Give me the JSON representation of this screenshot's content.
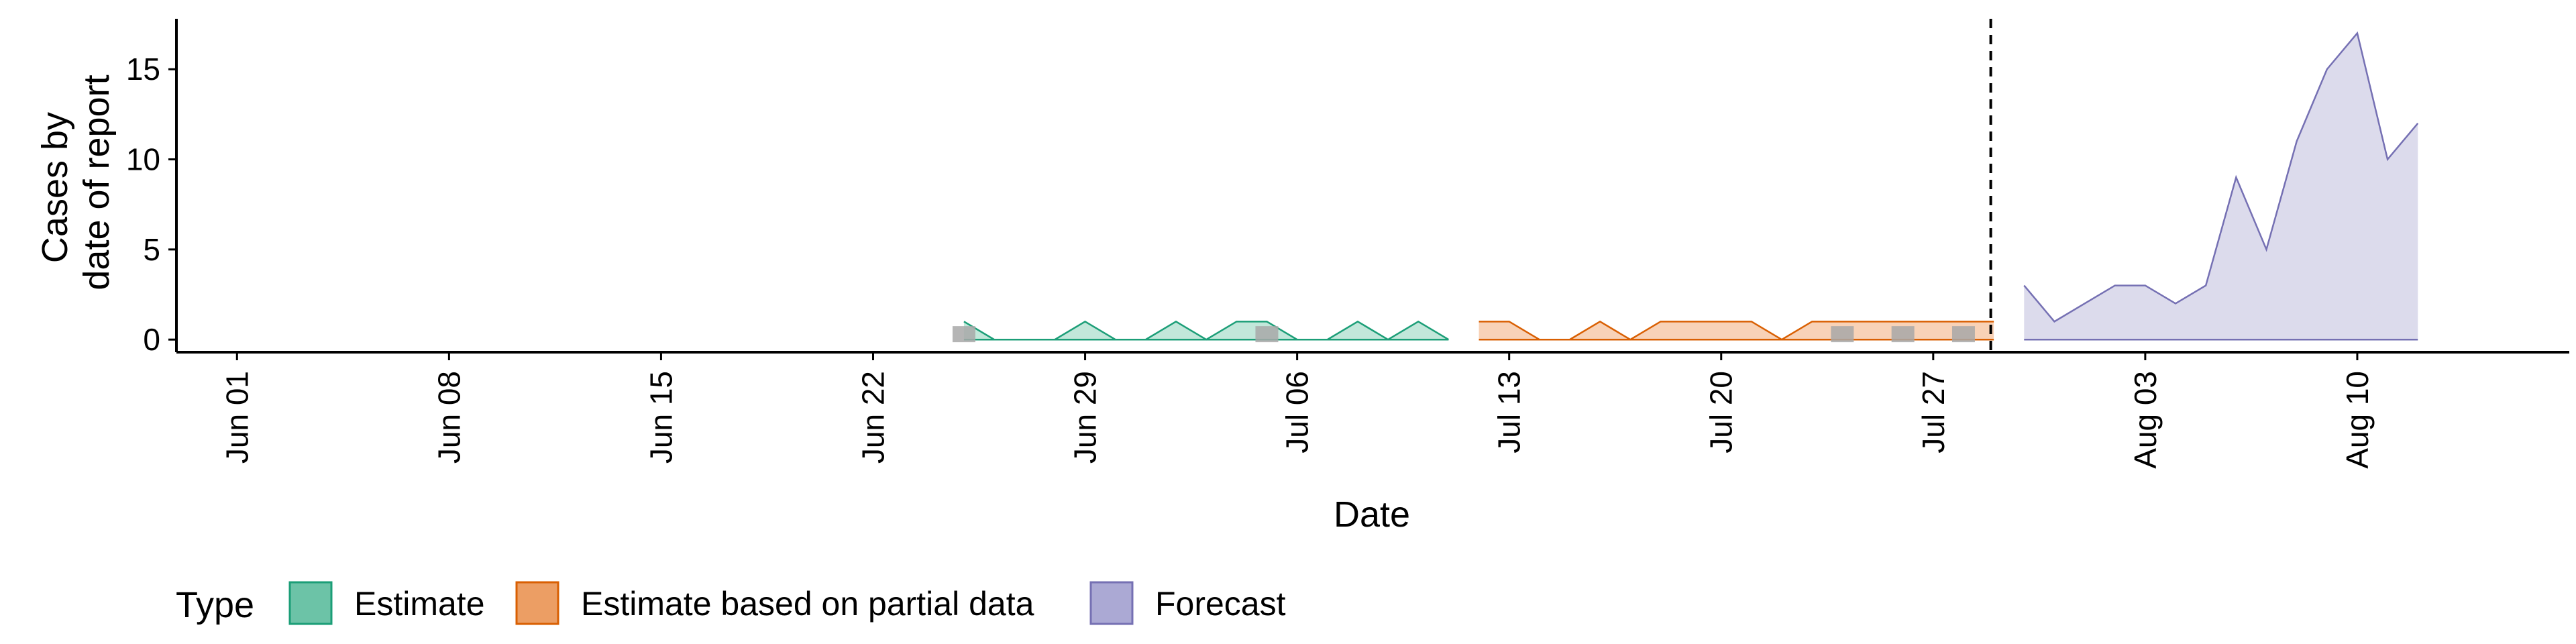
{
  "chart_data": {
    "type": "area",
    "xlabel": "Date",
    "ylabel_lines": [
      "Cases by",
      "date of report"
    ],
    "x_tick_labels": [
      "Jun 01",
      "Jun 08",
      "Jun 15",
      "Jun 22",
      "Jun 29",
      "Jul 06",
      "Jul 13",
      "Jul 20",
      "Jul 27",
      "Aug 03",
      "Aug 10"
    ],
    "x_tick_dates": [
      "2020-06-01",
      "2020-06-08",
      "2020-06-15",
      "2020-06-22",
      "2020-06-29",
      "2020-07-06",
      "2020-07-13",
      "2020-07-20",
      "2020-07-27",
      "2020-08-03",
      "2020-08-10"
    ],
    "y_ticks": [
      0,
      5,
      10,
      15
    ],
    "ylim": [
      -0.7,
      17.8
    ],
    "xlim": [
      "2020-05-30",
      "2020-08-17"
    ],
    "forecast_start": "2020-07-29",
    "legend": {
      "title": "Type",
      "position": "bottom",
      "items": [
        {
          "label": "Estimate",
          "fill": "#6cc3a7",
          "stroke": "#1b9e77"
        },
        {
          "label": "Estimate based on partial data",
          "fill": "#ec9e64",
          "stroke": "#d95f02"
        },
        {
          "label": "Forecast",
          "fill": "#aba9d4",
          "stroke": "#7570b3"
        }
      ]
    },
    "series": [
      {
        "name": "Estimate",
        "fill": "#c2e7da",
        "stroke": "#1b9e77",
        "x": [
          "2020-06-25",
          "2020-06-26",
          "2020-06-27",
          "2020-06-28",
          "2020-06-29",
          "2020-06-30",
          "2020-07-01",
          "2020-07-02",
          "2020-07-03",
          "2020-07-04",
          "2020-07-05",
          "2020-07-06",
          "2020-07-07",
          "2020-07-08",
          "2020-07-09",
          "2020-07-10",
          "2020-07-11"
        ],
        "y": [
          1,
          0,
          0,
          0,
          1,
          0,
          0,
          1,
          0,
          1,
          1,
          0,
          0,
          1,
          0,
          1,
          0
        ]
      },
      {
        "name": "Estimate based on partial data",
        "fill": "#f8d2b7",
        "stroke": "#d95f02",
        "x": [
          "2020-07-12",
          "2020-07-13",
          "2020-07-14",
          "2020-07-15",
          "2020-07-16",
          "2020-07-17",
          "2020-07-18",
          "2020-07-19",
          "2020-07-20",
          "2020-07-21",
          "2020-07-22",
          "2020-07-23",
          "2020-07-24",
          "2020-07-25",
          "2020-07-26",
          "2020-07-27",
          "2020-07-28",
          "2020-07-29"
        ],
        "y": [
          1,
          1,
          0,
          0,
          1,
          0,
          1,
          1,
          1,
          1,
          0,
          1,
          1,
          1,
          1,
          1,
          1,
          1
        ]
      },
      {
        "name": "Forecast",
        "fill": "#dcdbec",
        "stroke": "#7570b3",
        "x": [
          "2020-07-30",
          "2020-07-31",
          "2020-08-01",
          "2020-08-02",
          "2020-08-03",
          "2020-08-04",
          "2020-08-05",
          "2020-08-06",
          "2020-08-07",
          "2020-08-08",
          "2020-08-09",
          "2020-08-10",
          "2020-08-11",
          "2020-08-12"
        ],
        "y": [
          3,
          1,
          2,
          3,
          3,
          2,
          3,
          9,
          5,
          11,
          15,
          17,
          10,
          12
        ]
      }
    ],
    "observed_points": {
      "color": "#a8a8a8",
      "x": [
        "2020-06-25",
        "2020-07-05",
        "2020-07-24",
        "2020-07-26",
        "2020-07-28"
      ],
      "y": [
        0.3,
        0.3,
        0.3,
        0.3,
        0.3
      ]
    }
  }
}
